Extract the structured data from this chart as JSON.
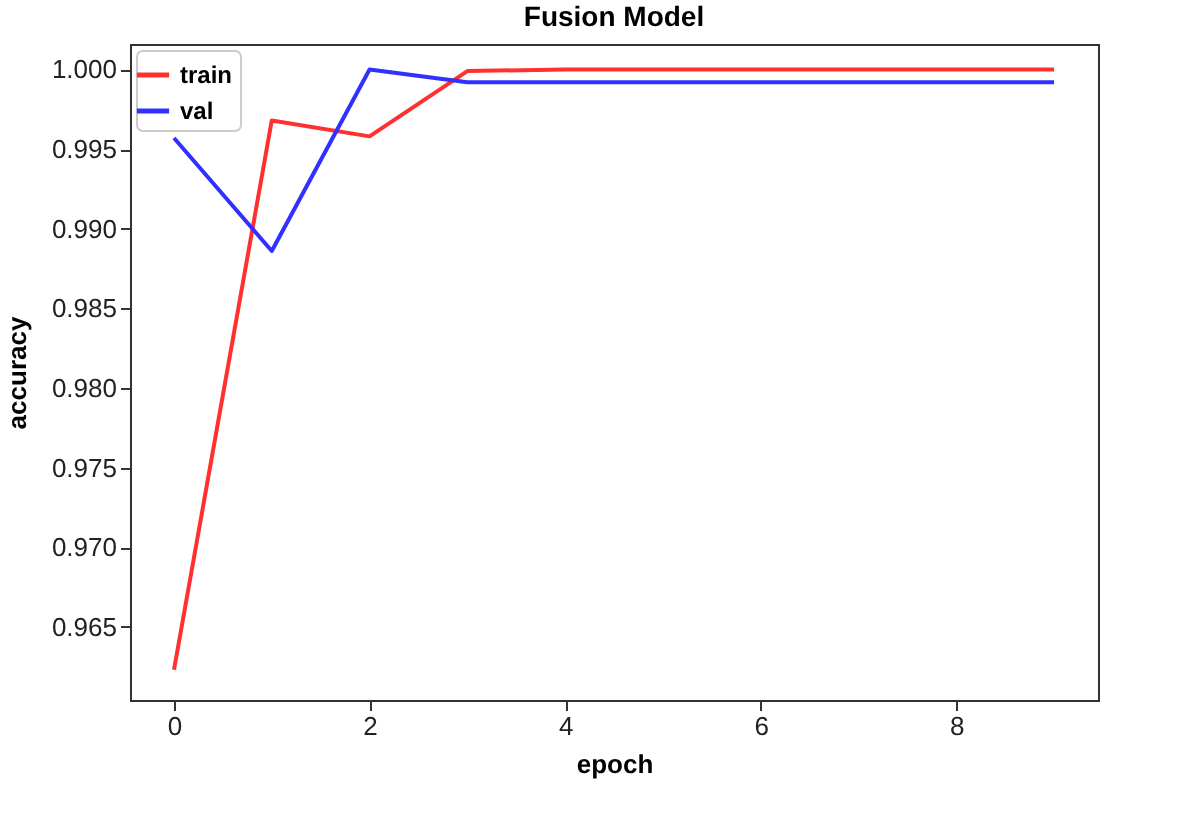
{
  "chart_data": {
    "type": "line",
    "title": "Fusion Model",
    "xlabel": "epoch",
    "ylabel": "accuracy",
    "x": [
      0,
      1,
      2,
      3,
      4,
      5,
      6,
      7,
      8,
      9
    ],
    "series": [
      {
        "name": "train",
        "color": "#ff3030",
        "values": [
          0.9623,
          0.9968,
          0.9958,
          0.9999,
          1.0,
          1.0,
          1.0,
          1.0,
          1.0,
          1.0
        ]
      },
      {
        "name": "val",
        "color": "#3030ff",
        "values": [
          0.9957,
          0.9886,
          1.0,
          0.9992,
          0.9992,
          0.9992,
          0.9992,
          0.9992,
          0.9992,
          0.9992
        ]
      }
    ],
    "xlim": [
      -0.45,
      9.45
    ],
    "xticks": [
      0,
      2,
      4,
      6,
      8
    ],
    "ylim": [
      0.9604,
      1.0016
    ],
    "yticks": [
      {
        "value": 0.965,
        "label": "0.965"
      },
      {
        "value": 0.97,
        "label": "0.970"
      },
      {
        "value": 0.975,
        "label": "0.975"
      },
      {
        "value": 0.98,
        "label": "0.980"
      },
      {
        "value": 0.985,
        "label": "0.985"
      },
      {
        "value": 0.99,
        "label": "0.990"
      },
      {
        "value": 0.995,
        "label": "0.995"
      },
      {
        "value": 1.0,
        "label": "1.000"
      }
    ],
    "grid": false,
    "legend": "top left",
    "marker": "none",
    "line_style": "solid"
  }
}
